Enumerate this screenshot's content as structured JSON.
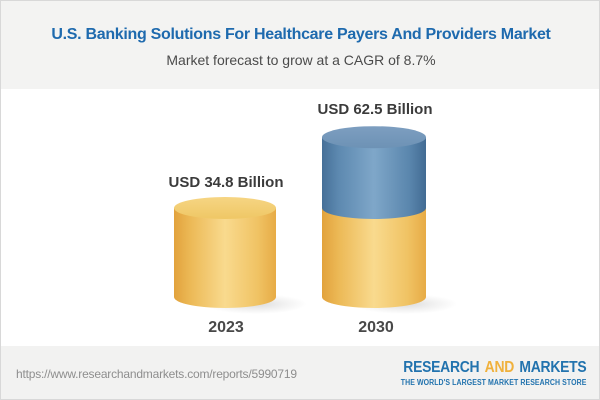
{
  "header": {
    "title": "U.S. Banking Solutions For Healthcare Payers And Providers Market",
    "subtitle": "Market forecast to grow at a CAGR of 8.7%"
  },
  "chart_data": {
    "type": "bar",
    "variant": "3d-cylinder-columns",
    "title": "U.S. Banking Solutions For Healthcare Payers And Providers Market",
    "subtitle": "Market forecast to grow at a CAGR of 8.7%",
    "unit": "USD Billion",
    "cagr_percent": 8.7,
    "categories": [
      "2023",
      "2030"
    ],
    "values": [
      34.8,
      62.5
    ],
    "value_labels": [
      "USD 34.8 Billion",
      "USD 62.5 Billion"
    ],
    "segments_2030": {
      "base_2023_level": 34.8,
      "growth_above_2023": 27.7
    },
    "axes": "none",
    "gridlines": false,
    "legend": "none",
    "colors": {
      "gold_column_mid": "#f9da8e",
      "gold_column_edge": "#e2a23c",
      "blue_segment_mid": "#7fa7c9",
      "blue_segment_edge": "#467098",
      "label_text": "#3b3b3b"
    }
  },
  "footer": {
    "url": "https://www.researchandmarkets.com/reports/5990719",
    "logo": {
      "word1": "RESEARCH",
      "word2": "AND",
      "word3": "MARKETS",
      "tagline": "THE WORLD'S LARGEST MARKET RESEARCH STORE",
      "brand_blue": "#2273ae",
      "brand_gold": "#f0b13c"
    }
  },
  "colors": {
    "title_blue": "#1e6aae",
    "subtitle_gray": "#4b4b4b",
    "header_bg": "#f3f3f2",
    "footer_bg": "#f2f2f1",
    "chart_bg": "#ffffff",
    "border": "#d8d8d8",
    "url_gray": "#8e8e8e"
  }
}
